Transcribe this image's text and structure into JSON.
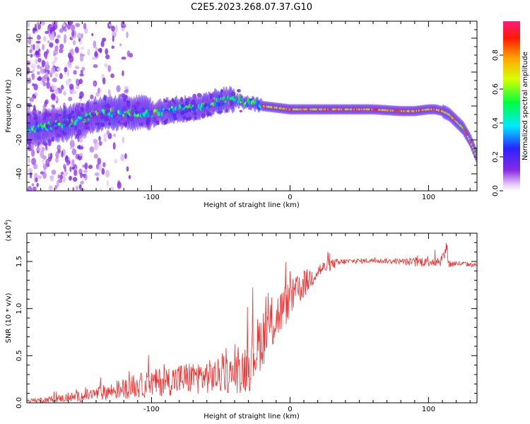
{
  "title": "C2E5.2023.268.07.37.G10",
  "chart_data": [
    {
      "type": "heatmap",
      "name": "spectrogram",
      "xlabel": "Height of straight line (km)",
      "ylabel": "Frequency (Hz)",
      "xlim": [
        -190,
        135
      ],
      "ylim": [
        -50,
        50
      ],
      "xticks": [
        -100,
        0,
        100
      ],
      "xtick_labels": [
        "-100",
        "0",
        "100"
      ],
      "yticks": [
        -40,
        -20,
        0,
        20,
        40
      ],
      "ytick_labels": [
        "-40",
        "-20",
        "0",
        "20",
        "40"
      ],
      "ridge_points": [
        [
          -190,
          -14
        ],
        [
          -180,
          -13
        ],
        [
          -170,
          -11
        ],
        [
          -160,
          -10
        ],
        [
          -150,
          -8
        ],
        [
          -140,
          -5
        ],
        [
          -130,
          -4
        ],
        [
          -120,
          -4
        ],
        [
          -110,
          -4
        ],
        [
          -100,
          -5
        ],
        [
          -90,
          -3
        ],
        [
          -80,
          -2
        ],
        [
          -70,
          -1
        ],
        [
          -60,
          1
        ],
        [
          -50,
          3
        ],
        [
          -40,
          4
        ],
        [
          -30,
          2
        ],
        [
          -20,
          0
        ],
        [
          -10,
          -1
        ],
        [
          0,
          -2
        ],
        [
          20,
          -2
        ],
        [
          40,
          -2
        ],
        [
          60,
          -2
        ],
        [
          80,
          -3
        ],
        [
          90,
          -3
        ],
        [
          100,
          -2
        ],
        [
          105,
          -2
        ],
        [
          110,
          -3
        ],
        [
          115,
          -5
        ],
        [
          120,
          -9
        ],
        [
          125,
          -13
        ],
        [
          130,
          -20
        ],
        [
          135,
          -30
        ]
      ],
      "colorbar": {
        "label": "Normalized spectral amplitude",
        "range": [
          0,
          1
        ],
        "ticks": [
          0.0,
          0.2,
          0.4,
          0.6,
          0.8
        ],
        "tick_labels": [
          "0.0",
          "0.2",
          "0.4",
          "0.6",
          "0.8"
        ]
      }
    },
    {
      "type": "line",
      "name": "snr",
      "xlabel": "Height of straight line (km)",
      "ylabel": "SNR (10 * v/v)",
      "scale_label": "(x10",
      "scale_exponent": "4",
      "scale_close": ")",
      "xlim": [
        -190,
        135
      ],
      "ylim": [
        0,
        18000
      ],
      "xticks": [
        -100,
        0,
        100
      ],
      "xtick_labels": [
        "-100",
        "0",
        "100"
      ],
      "yticks": [
        0,
        5000,
        10000,
        15000
      ],
      "ytick_labels": [
        "0.0",
        "0.5",
        "1.0",
        "1.5"
      ],
      "color": "#ee3333",
      "series": [
        {
          "name": "SNR",
          "x": [
            -190,
            -170,
            -150,
            -130,
            -110,
            -90,
            -70,
            -55,
            -40,
            -30,
            -20,
            -10,
            0,
            10,
            20,
            30,
            40,
            60,
            80,
            90,
            100,
            105,
            110,
            113,
            115,
            120,
            135
          ],
          "y": [
            200,
            400,
            700,
            1200,
            1800,
            2300,
            2700,
            2800,
            3000,
            4000,
            7000,
            9000,
            11000,
            12500,
            14000,
            14700,
            15000,
            15100,
            15000,
            14900,
            15100,
            15000,
            15200,
            16500,
            14700,
            14800,
            14600
          ],
          "noise": [
            200,
            350,
            600,
            900,
            1300,
            1600,
            1800,
            1800,
            2000,
            3000,
            3200,
            2800,
            2000,
            1500,
            900,
            600,
            300,
            250,
            300,
            500,
            600,
            600,
            700,
            800,
            500,
            300,
            200
          ]
        }
      ]
    }
  ]
}
